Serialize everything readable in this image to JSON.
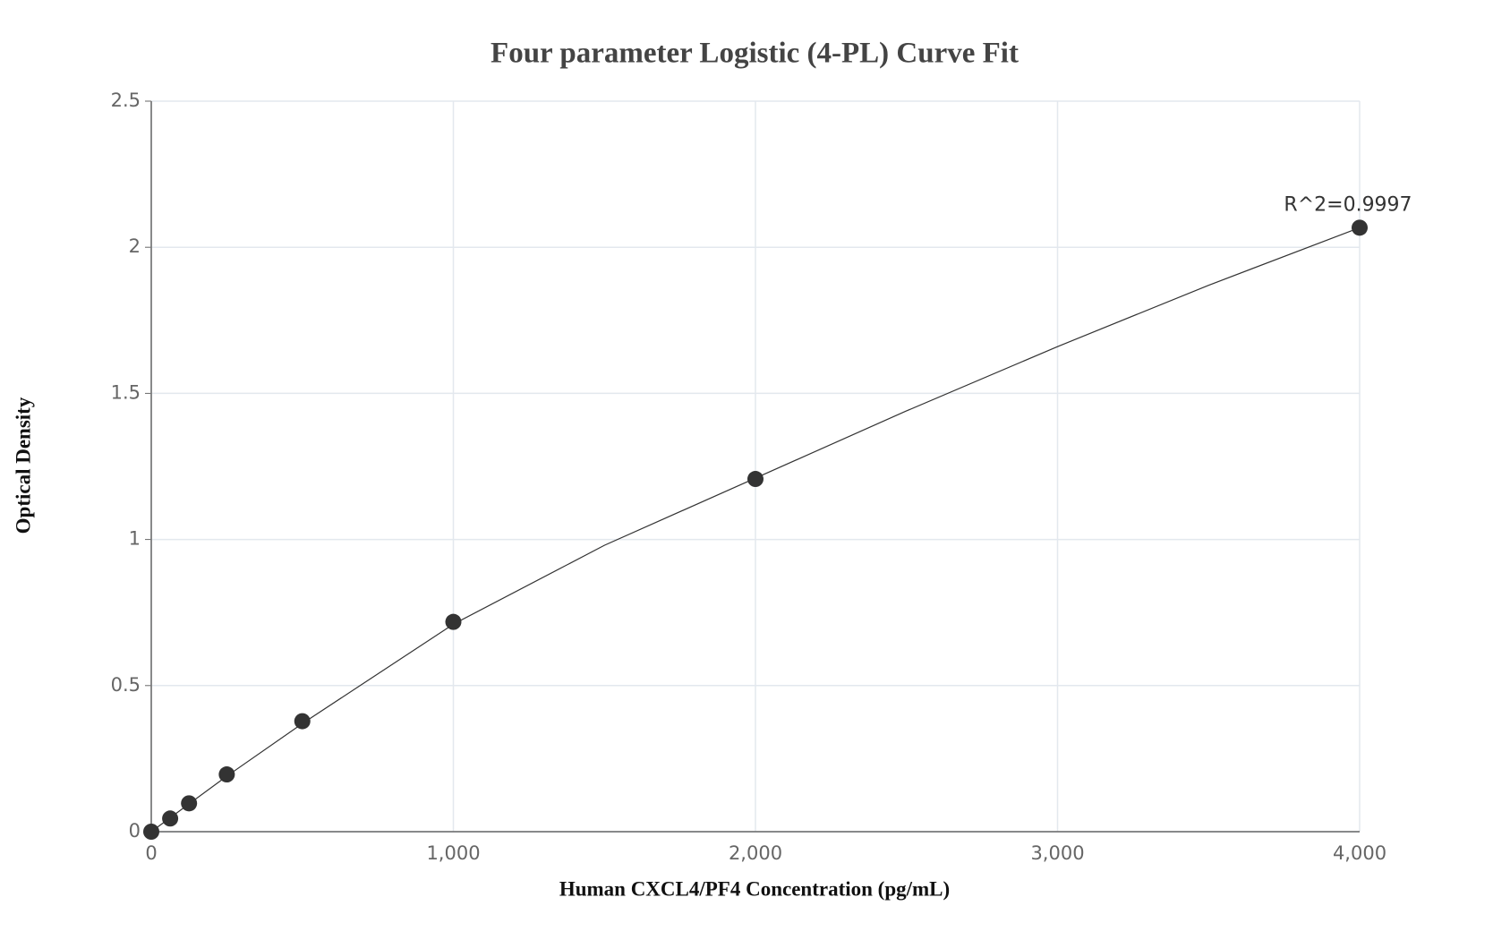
{
  "chart_data": {
    "type": "scatter",
    "title": "Four parameter Logistic (4-PL) Curve Fit",
    "x_label": "Human CXCL4/PF4 Concentration (pg/mL)",
    "y_label": "Optical Density",
    "annotation": "R^2=0.9997",
    "series": [
      {
        "color": "#333333",
        "x": [
          0,
          62.5,
          125,
          250,
          500,
          1000,
          2000,
          4000
        ],
        "values": [
          0.0,
          0.045,
          0.097,
          0.196,
          0.378,
          0.718,
          1.207,
          2.067
        ]
      },
      {
        "color": "#333333",
        "x": [
          0,
          250,
          500,
          1000,
          1500,
          2000,
          2500,
          3000,
          3500,
          4000
        ],
        "values": [
          0.0,
          0.19,
          0.37,
          0.71,
          0.98,
          1.21,
          1.44,
          1.66,
          1.87,
          2.067
        ]
      }
    ],
    "xlim": [
      0,
      4000
    ],
    "xticks": [
      0,
      {
        "value": 1000,
        "label": "1,000"
      },
      {
        "value": 2000,
        "label": "2,000"
      },
      {
        "value": 3000,
        "label": "3,000"
      },
      {
        "value": 4000,
        "label": "4,000"
      }
    ],
    "ylim": [
      0,
      2.5
    ],
    "yticks": [
      0,
      0.5,
      1,
      1.5,
      2,
      2.5
    ],
    "grid": true
  }
}
